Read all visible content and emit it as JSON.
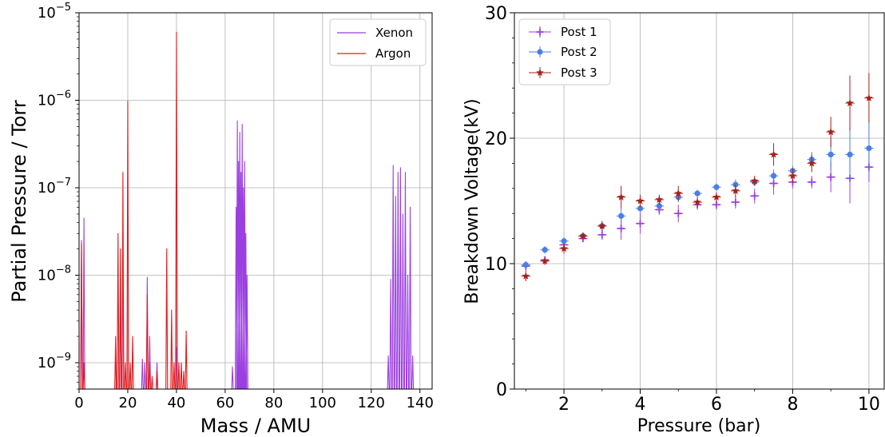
{
  "chart_data": [
    {
      "type": "line",
      "xlabel": "Mass / AMU",
      "ylabel": "Partial Pressure / Torr",
      "xlim": [
        0,
        145
      ],
      "ylim": [
        5e-10,
        1e-05
      ],
      "yscale": "log",
      "grid": true,
      "legend_position": "top-right",
      "xticks": [
        "0",
        "20",
        "40",
        "60",
        "80",
        "100",
        "120",
        "140"
      ],
      "yticks": [
        {
          "base": "10",
          "exp": "−5"
        },
        {
          "base": "10",
          "exp": "−6"
        },
        {
          "base": "10",
          "exp": "−7"
        },
        {
          "base": "10",
          "exp": "−8"
        },
        {
          "base": "10",
          "exp": "−9"
        }
      ],
      "series": [
        {
          "name": "Xenon",
          "color": "#9b3fe0",
          "peaks": [
            [
              1,
              2.5e-08
            ],
            [
              2,
              4.5e-08
            ],
            [
              15,
              1.3e-09
            ],
            [
              17,
              6e-09
            ],
            [
              18,
              2.5e-08
            ],
            [
              26,
              1.1e-09
            ],
            [
              27,
              1e-09
            ],
            [
              28,
              9.5e-09
            ],
            [
              29,
              2e-09
            ],
            [
              32,
              1e-09
            ],
            [
              40,
              1.5e-09
            ],
            [
              63,
              9e-10
            ],
            [
              64.5,
              6e-08
            ],
            [
              65,
              5.8e-07
            ],
            [
              65.5,
              2e-07
            ],
            [
              66,
              4.3e-07
            ],
            [
              66.5,
              1.5e-07
            ],
            [
              67,
              5.3e-07
            ],
            [
              67.5,
              1e-07
            ],
            [
              68,
              2e-07
            ],
            [
              68.5,
              3e-08
            ],
            [
              69,
              1e-08
            ],
            [
              127,
              1.2e-09
            ],
            [
              128,
              9e-09
            ],
            [
              129,
              1.8e-07
            ],
            [
              130,
              8e-08
            ],
            [
              131,
              1.5e-07
            ],
            [
              132,
              1.7e-07
            ],
            [
              133,
              5e-08
            ],
            [
              134,
              1.5e-07
            ],
            [
              135,
              1e-08
            ],
            [
              136,
              6e-08
            ],
            [
              137,
              1.2e-09
            ]
          ]
        },
        {
          "name": "Argon",
          "color": "#e41a1c",
          "peaks": [
            [
              1,
              2.3e-08
            ],
            [
              2,
              1e-09
            ],
            [
              15,
              2e-09
            ],
            [
              16,
              3e-08
            ],
            [
              17,
              2e-08
            ],
            [
              18,
              1.5e-07
            ],
            [
              19,
              1e-09
            ],
            [
              20,
              9.8e-07
            ],
            [
              21,
              1e-09
            ],
            [
              22,
              2e-09
            ],
            [
              28,
              6e-09
            ],
            [
              29,
              1e-09
            ],
            [
              30,
              7e-10
            ],
            [
              32,
              8e-10
            ],
            [
              36,
              2e-08
            ],
            [
              38,
              4e-09
            ],
            [
              39,
              1e-09
            ],
            [
              40,
              6e-06
            ],
            [
              41,
              1e-09
            ],
            [
              42,
              1e-09
            ],
            [
              43,
              8e-10
            ],
            [
              44,
              2.3e-09
            ]
          ]
        }
      ]
    },
    {
      "type": "scatter",
      "xlabel": "Pressure (bar)",
      "ylabel": "Breakdown Voltage(kV)",
      "xlim": [
        0.7,
        10.4
      ],
      "ylim": [
        0,
        30
      ],
      "grid": true,
      "legend_position": "top-left",
      "xticks": [
        "2",
        "4",
        "6",
        "8",
        "10"
      ],
      "yticks": [
        "0",
        "10",
        "20",
        "30"
      ],
      "x": [
        1,
        1.5,
        2,
        2.5,
        3,
        3.5,
        4,
        4.5,
        5,
        5.5,
        6,
        6.5,
        7,
        7.5,
        8,
        8.5,
        9,
        9.5,
        10
      ],
      "series": [
        {
          "name": "Post 1",
          "color": "#9b3fe0",
          "marker": "+",
          "values": [
            9.8,
            10.3,
            11.5,
            12.0,
            12.3,
            12.8,
            13.2,
            14.3,
            14.0,
            14.7,
            14.7,
            14.9,
            15.4,
            16.4,
            16.5,
            16.5,
            16.9,
            16.8,
            17.7
          ],
          "errors": [
            0.4,
            0.3,
            0.3,
            0.3,
            0.4,
            0.9,
            0.8,
            0.4,
            0.7,
            0.4,
            0.4,
            0.5,
            0.6,
            0.9,
            0.5,
            0.5,
            1.2,
            2.0,
            1.2
          ]
        },
        {
          "name": "Post 2",
          "color": "#4a7fe3",
          "marker": "o",
          "values": [
            9.9,
            11.1,
            11.8,
            12.2,
            13.0,
            13.8,
            14.4,
            14.6,
            15.3,
            15.6,
            16.1,
            16.3,
            16.5,
            17.0,
            17.4,
            18.3,
            18.7,
            18.7,
            19.2
          ],
          "errors": [
            0.3,
            0.3,
            0.3,
            0.3,
            0.3,
            0.6,
            0.4,
            0.4,
            0.4,
            0.3,
            0.3,
            0.4,
            0.3,
            0.5,
            0.4,
            0.6,
            1.2,
            2.2,
            2.0
          ]
        },
        {
          "name": "Post 3",
          "color": "#a8201a",
          "marker": "*",
          "values": [
            9.0,
            10.2,
            11.2,
            12.2,
            13.0,
            15.3,
            15.0,
            15.1,
            15.6,
            14.9,
            15.3,
            15.8,
            16.6,
            18.7,
            17.0,
            18.0,
            20.5,
            22.8,
            23.2
          ],
          "errors": [
            0.4,
            0.3,
            0.4,
            0.3,
            0.4,
            0.9,
            0.5,
            0.4,
            0.6,
            0.4,
            0.4,
            0.5,
            0.4,
            0.9,
            0.6,
            0.7,
            1.2,
            2.2,
            2.0
          ]
        }
      ]
    }
  ]
}
